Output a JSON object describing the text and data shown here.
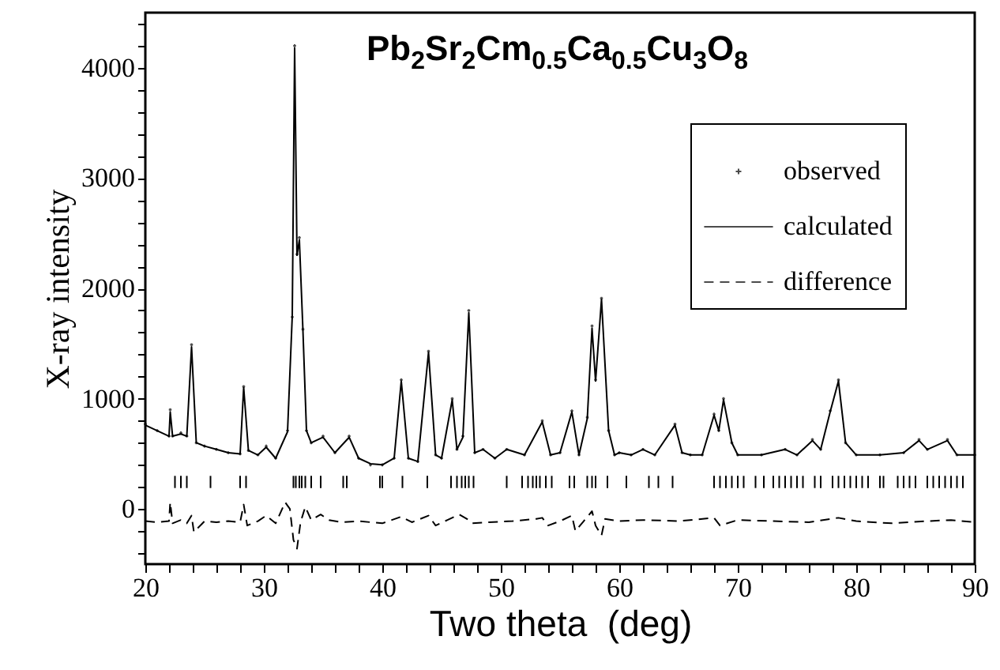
{
  "chart_data": {
    "type": "scatter",
    "title": "Pb$_{2}$Sr$_{2}$Cm$_{0.5}$Ca$_{0.5}$Cu$_{3}$O$_{8}$",
    "xlabel": "Two theta  (deg)",
    "ylabel": "X-ray intensity",
    "x": [
      20,
      21,
      22,
      22.1,
      22.3,
      23,
      23.5,
      23.9,
      24.3,
      25,
      26,
      27,
      28,
      28.3,
      28.7,
      29.5,
      30.2,
      31,
      32,
      32.4,
      32.6,
      32.8,
      33.0,
      33.3,
      33.6,
      34,
      35,
      36,
      37.2,
      38,
      39,
      40,
      41,
      41.6,
      42.2,
      43,
      43.9,
      44.5,
      45,
      45.9,
      46.3,
      46.8,
      47.3,
      47.8,
      48.5,
      49.5,
      50.5,
      52,
      53.5,
      54.2,
      55,
      56,
      56.6,
      57.3,
      57.7,
      58.0,
      58.5,
      59.1,
      59.6,
      60,
      61,
      62,
      63,
      64.7,
      65.3,
      66,
      67,
      68.0,
      68.4,
      68.8,
      69.5,
      70,
      72,
      74,
      75,
      76.3,
      77,
      77.8,
      78.5,
      79.1,
      80,
      82,
      84,
      85.3,
      86,
      87.7,
      88.5,
      90
    ],
    "series": [
      {
        "name": "observed",
        "marker": "cross",
        "color": "#000000",
        "values": [
          770,
          710,
          660,
          900,
          660,
          690,
          660,
          1490,
          600,
          570,
          540,
          510,
          500,
          1110,
          530,
          490,
          570,
          460,
          710,
          1740,
          4200,
          2310,
          2460,
          1630,
          710,
          600,
          660,
          510,
          660,
          460,
          400,
          400,
          460,
          1170,
          460,
          430,
          1430,
          490,
          460,
          1000,
          540,
          660,
          1800,
          510,
          540,
          460,
          540,
          490,
          800,
          490,
          510,
          890,
          490,
          830,
          1660,
          1170,
          1910,
          710,
          490,
          510,
          490,
          540,
          490,
          770,
          510,
          490,
          490,
          860,
          710,
          1000,
          600,
          490,
          490,
          540,
          490,
          630,
          540,
          890,
          1170,
          600,
          490,
          490,
          510,
          630,
          540,
          630,
          490,
          490
        ]
      },
      {
        "name": "calculated",
        "type": "line",
        "line_style": "solid",
        "color": "#000000",
        "values": [
          760,
          710,
          660,
          880,
          660,
          680,
          660,
          1470,
          600,
          570,
          540,
          510,
          500,
          1100,
          530,
          490,
          560,
          460,
          700,
          1750,
          4180,
          2300,
          2440,
          1620,
          710,
          600,
          650,
          510,
          650,
          460,
          410,
          400,
          460,
          1160,
          460,
          430,
          1420,
          490,
          460,
          990,
          540,
          650,
          1780,
          510,
          540,
          460,
          540,
          490,
          790,
          490,
          510,
          880,
          490,
          820,
          1640,
          1160,
          1900,
          710,
          490,
          510,
          490,
          540,
          490,
          760,
          510,
          490,
          490,
          850,
          710,
          990,
          600,
          490,
          490,
          540,
          490,
          620,
          540,
          880,
          1160,
          600,
          490,
          490,
          510,
          620,
          540,
          620,
          490,
          490
        ]
      },
      {
        "name": "difference",
        "type": "line",
        "line_style": "dashed",
        "color": "#000000",
        "x": [
          20,
          21,
          22,
          22.1,
          22.3,
          23,
          23.5,
          23.9,
          24.1,
          25,
          26,
          27,
          28,
          28.3,
          28.6,
          29.5,
          30.2,
          31,
          31.8,
          32.2,
          32.5,
          32.8,
          33.1,
          33.5,
          34,
          34.8,
          35.5,
          36.5,
          38,
          40,
          41.6,
          42.5,
          43.9,
          44.5,
          45.5,
          46.5,
          47.3,
          47.6,
          49,
          51,
          53,
          53.5,
          54,
          55,
          56,
          56.3,
          57,
          57.7,
          58,
          58.5,
          58.8,
          60,
          62,
          65,
          68,
          68.5,
          70,
          73,
          76,
          78.5,
          80,
          83,
          86,
          88,
          90
        ],
        "values": [
          -110,
          -120,
          -110,
          60,
          -130,
          -100,
          -130,
          -60,
          -210,
          -110,
          -120,
          -110,
          -120,
          40,
          -150,
          -110,
          -60,
          -130,
          60,
          0,
          -280,
          -360,
          -120,
          20,
          -100,
          -50,
          -100,
          -120,
          -110,
          -130,
          -70,
          -120,
          -60,
          -150,
          -100,
          -50,
          -100,
          -130,
          -120,
          -110,
          -90,
          -80,
          -150,
          -110,
          -60,
          -200,
          -110,
          -20,
          -150,
          -240,
          -90,
          -110,
          -100,
          -110,
          -80,
          -150,
          -100,
          -110,
          -120,
          -80,
          -110,
          -130,
          -110,
          -100,
          -120
        ]
      },
      {
        "type": "bar",
        "color": "#000000",
        "x": [
          22.5,
          23.0,
          23.5,
          25.5,
          28.0,
          28.5,
          32.5,
          32.7,
          33.0,
          33.2,
          33.5,
          34.0,
          34.8,
          36.7,
          37.0,
          39.8,
          40.0,
          41.7,
          43.8,
          45.8,
          46.3,
          46.7,
          47.0,
          47.3,
          47.7,
          50.5,
          51.8,
          52.3,
          52.7,
          53.0,
          53.3,
          53.8,
          54.3,
          55.8,
          56.2,
          57.3,
          57.7,
          58.0,
          59.0,
          60.6,
          62.5,
          63.3,
          64.5,
          68.0,
          68.5,
          69.0,
          69.5,
          70.0,
          70.5,
          71.5,
          72.2,
          73.0,
          73.5,
          74.0,
          74.5,
          75.0,
          75.5,
          76.5,
          77.0,
          78.0,
          78.5,
          79.0,
          79.5,
          80.0,
          80.5,
          81.0,
          82.0,
          82.3,
          83.5,
          84.0,
          84.5,
          85.0,
          86.0,
          86.5,
          87.0,
          87.5,
          88.0,
          88.5,
          89.0
        ],
        "base": [
          190,
          190,
          190,
          190,
          190,
          190,
          190,
          190,
          190,
          190,
          190,
          190,
          190,
          190,
          190,
          190,
          190,
          190,
          190,
          190,
          190,
          190,
          190,
          190,
          190,
          190,
          190,
          190,
          190,
          190,
          190,
          190,
          190,
          190,
          190,
          190,
          190,
          190,
          190,
          190,
          190,
          190,
          190,
          190,
          190,
          190,
          190,
          190,
          190,
          190,
          190,
          190,
          190,
          190,
          190,
          190,
          190,
          190,
          190,
          190,
          190,
          190,
          190,
          190,
          190,
          190,
          190,
          190,
          190,
          190,
          190,
          190,
          190,
          190,
          190,
          190,
          190,
          190,
          190
        ],
        "values": [
          110,
          110,
          110,
          110,
          110,
          110,
          110,
          110,
          110,
          110,
          110,
          110,
          110,
          110,
          110,
          110,
          110,
          110,
          110,
          110,
          110,
          110,
          110,
          110,
          110,
          110,
          110,
          110,
          110,
          110,
          110,
          110,
          110,
          110,
          110,
          110,
          110,
          110,
          110,
          110,
          110,
          110,
          110,
          110,
          110,
          110,
          110,
          110,
          110,
          110,
          110,
          110,
          110,
          110,
          110,
          110,
          110,
          110,
          110,
          110,
          110,
          110,
          110,
          110,
          110,
          110,
          110,
          110,
          110,
          110,
          110,
          110,
          110,
          110,
          110,
          110,
          110,
          110,
          110
        ]
      }
    ],
    "xlim": [
      20,
      90
    ],
    "xticks": [
      20,
      {
        "value": 22,
        "label": null
      },
      {
        "value": 24,
        "label": null
      },
      {
        "value": 26,
        "label": null
      },
      {
        "value": 28,
        "label": null
      },
      30,
      {
        "value": 32,
        "label": null
      },
      {
        "value": 34,
        "label": null
      },
      {
        "value": 36,
        "label": null
      },
      {
        "value": 38,
        "label": null
      },
      40,
      {
        "value": 42,
        "label": null
      },
      {
        "value": 44,
        "label": null
      },
      {
        "value": 46,
        "label": null
      },
      {
        "value": 48,
        "label": null
      },
      50,
      {
        "value": 52,
        "label": null
      },
      {
        "value": 54,
        "label": null
      },
      {
        "value": 56,
        "label": null
      },
      {
        "value": 58,
        "label": null
      },
      60,
      {
        "value": 62,
        "label": null
      },
      {
        "value": 64,
        "label": null
      },
      {
        "value": 66,
        "label": null
      },
      {
        "value": 68,
        "label": null
      },
      70,
      {
        "value": 72,
        "label": null
      },
      {
        "value": 74,
        "label": null
      },
      {
        "value": 76,
        "label": null
      },
      {
        "value": 78,
        "label": null
      },
      80,
      {
        "value": 82,
        "label": null
      },
      {
        "value": 84,
        "label": null
      },
      {
        "value": 86,
        "label": null
      },
      {
        "value": 88,
        "label": null
      },
      90
    ],
    "ylim": [
      -500,
      4500
    ],
    "yticks": [
      {
        "value": -400,
        "label": null
      },
      {
        "value": -200,
        "label": null
      },
      0,
      {
        "value": 200,
        "label": null
      },
      {
        "value": 400,
        "label": null
      },
      {
        "value": 600,
        "label": null
      },
      {
        "value": 800,
        "label": null
      },
      1000,
      {
        "value": 1200,
        "label": null
      },
      {
        "value": 1400,
        "label": null
      },
      {
        "value": 1600,
        "label": null
      },
      {
        "value": 1800,
        "label": null
      },
      2000,
      {
        "value": 2200,
        "label": null
      },
      {
        "value": 2400,
        "label": null
      },
      {
        "value": 2600,
        "label": null
      },
      {
        "value": 2800,
        "label": null
      },
      3000,
      {
        "value": 3200,
        "label": null
      },
      {
        "value": 3400,
        "label": null
      },
      {
        "value": 3600,
        "label": null
      },
      {
        "value": 3800,
        "label": null
      },
      4000,
      {
        "value": 4200,
        "label": null
      },
      {
        "value": 4400,
        "label": null
      }
    ],
    "legend": "top right",
    "grid": false
  }
}
